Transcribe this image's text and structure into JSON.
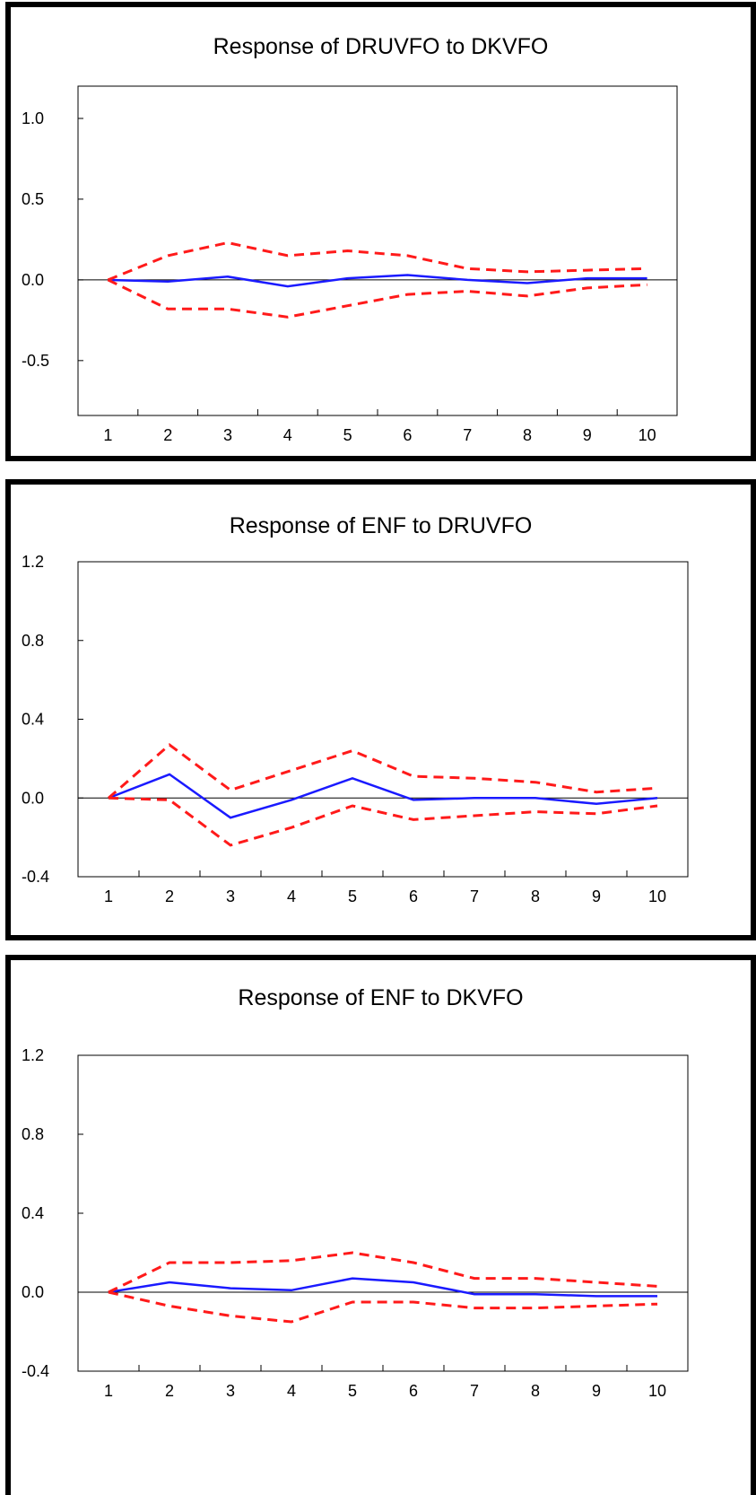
{
  "colors": {
    "response": "#1a1aff",
    "bands": "#ff1a1a",
    "axis": "#000000"
  },
  "chart_data": [
    {
      "type": "line",
      "title": "Response of DRUVFO to DKVFO",
      "x": [
        1,
        2,
        3,
        4,
        5,
        6,
        7,
        8,
        9,
        10
      ],
      "ylim": [
        -0.84,
        1.2
      ],
      "yticks": [
        1.0,
        0.5,
        0.0,
        -0.5
      ],
      "ytick_labels": [
        "1.0",
        "0.5",
        "0.0",
        "-0.5"
      ],
      "series": [
        {
          "role": "response",
          "style": "solid",
          "values": [
            0.0,
            -0.01,
            0.02,
            -0.04,
            0.01,
            0.03,
            0.0,
            -0.02,
            0.01,
            0.01
          ]
        },
        {
          "role": "upper",
          "style": "dashed",
          "values": [
            0.0,
            0.15,
            0.23,
            0.15,
            0.18,
            0.15,
            0.07,
            0.05,
            0.06,
            0.07
          ]
        },
        {
          "role": "lower",
          "style": "dashed",
          "values": [
            0.0,
            -0.18,
            -0.18,
            -0.23,
            -0.16,
            -0.09,
            -0.07,
            -0.1,
            -0.05,
            -0.03
          ]
        }
      ]
    },
    {
      "type": "line",
      "title": "Response of ENF to DRUVFO",
      "x": [
        1,
        2,
        3,
        4,
        5,
        6,
        7,
        8,
        9,
        10
      ],
      "ylim": [
        -0.4,
        1.2
      ],
      "yticks": [
        1.2,
        0.8,
        0.4,
        0.0,
        -0.4
      ],
      "ytick_labels": [
        "1.2",
        "0.8",
        "0.4",
        "0.0",
        "-0.4"
      ],
      "series": [
        {
          "role": "response",
          "style": "solid",
          "values": [
            0.0,
            0.12,
            -0.1,
            -0.01,
            0.1,
            -0.01,
            0.0,
            0.0,
            -0.03,
            0.0
          ]
        },
        {
          "role": "upper",
          "style": "dashed",
          "values": [
            0.0,
            0.27,
            0.04,
            0.14,
            0.24,
            0.11,
            0.1,
            0.08,
            0.03,
            0.05
          ]
        },
        {
          "role": "lower",
          "style": "dashed",
          "values": [
            0.0,
            -0.01,
            -0.24,
            -0.15,
            -0.04,
            -0.11,
            -0.09,
            -0.07,
            -0.08,
            -0.04
          ]
        }
      ]
    },
    {
      "type": "line",
      "title": "Response of ENF to DKVFO",
      "x": [
        1,
        2,
        3,
        4,
        5,
        6,
        7,
        8,
        9,
        10
      ],
      "ylim": [
        -0.4,
        1.2
      ],
      "yticks": [
        1.2,
        0.8,
        0.4,
        0.0,
        -0.4
      ],
      "ytick_labels": [
        "1.2",
        "0.8",
        "0.4",
        "0.0",
        "-0.4"
      ],
      "series": [
        {
          "role": "response",
          "style": "solid",
          "values": [
            0.0,
            0.05,
            0.02,
            0.01,
            0.07,
            0.05,
            -0.01,
            -0.01,
            -0.02,
            -0.02
          ]
        },
        {
          "role": "upper",
          "style": "dashed",
          "values": [
            0.0,
            0.15,
            0.15,
            0.16,
            0.2,
            0.15,
            0.07,
            0.07,
            0.05,
            0.03
          ]
        },
        {
          "role": "lower",
          "style": "dashed",
          "values": [
            0.0,
            -0.07,
            -0.12,
            -0.15,
            -0.05,
            -0.05,
            -0.08,
            -0.08,
            -0.07,
            -0.06
          ]
        }
      ]
    }
  ]
}
